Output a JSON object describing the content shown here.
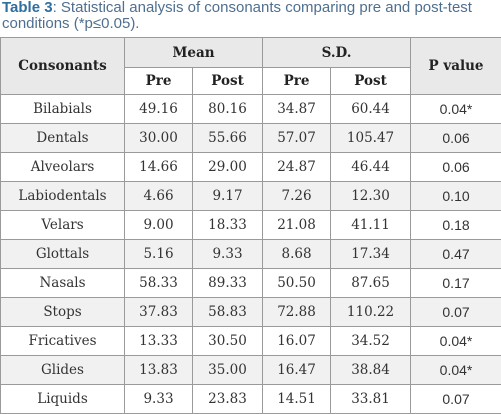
{
  "caption": {
    "label": "Table 3",
    "text": ": Statistical analysis of consonants comparing pre and post-test conditions (*p≤0.05)."
  },
  "table": {
    "headers": {
      "consonants": "Consonants",
      "mean": "Mean",
      "sd": "S.D.",
      "pvalue": "P value",
      "pre": "Pre",
      "post": "Post"
    },
    "rows": [
      {
        "name": "Bilabials",
        "mean_pre": "49.16",
        "mean_post": "80.16",
        "sd_pre": "34.87",
        "sd_post": "60.44",
        "p": "0.04*"
      },
      {
        "name": "Dentals",
        "mean_pre": "30.00",
        "mean_post": "55.66",
        "sd_pre": "57.07",
        "sd_post": "105.47",
        "p": "0.06"
      },
      {
        "name": "Alveolars",
        "mean_pre": "14.66",
        "mean_post": "29.00",
        "sd_pre": "24.87",
        "sd_post": "46.44",
        "p": "0.06"
      },
      {
        "name": "Labiodentals",
        "mean_pre": "4.66",
        "mean_post": "9.17",
        "sd_pre": "7.26",
        "sd_post": "12.30",
        "p": "0.10"
      },
      {
        "name": "Velars",
        "mean_pre": "9.00",
        "mean_post": "18.33",
        "sd_pre": "21.08",
        "sd_post": "41.11",
        "p": "0.18"
      },
      {
        "name": "Glottals",
        "mean_pre": "5.16",
        "mean_post": "9.33",
        "sd_pre": "8.68",
        "sd_post": "17.34",
        "p": "0.47"
      },
      {
        "name": "Nasals",
        "mean_pre": "58.33",
        "mean_post": "89.33",
        "sd_pre": "50.50",
        "sd_post": "87.65",
        "p": "0.17"
      },
      {
        "name": "Stops",
        "mean_pre": "37.83",
        "mean_post": "58.83",
        "sd_pre": "72.88",
        "sd_post": "110.22",
        "p": "0.07"
      },
      {
        "name": "Fricatives",
        "mean_pre": "13.33",
        "mean_post": "30.50",
        "sd_pre": "16.07",
        "sd_post": "34.52",
        "p": "0.04*"
      },
      {
        "name": "Glides",
        "mean_pre": "13.83",
        "mean_post": "35.00",
        "sd_pre": "16.47",
        "sd_post": "38.84",
        "p": "0.04*"
      },
      {
        "name": "Liquids",
        "mean_pre": "9.33",
        "mean_post": "23.83",
        "sd_pre": "14.51",
        "sd_post": "33.81",
        "p": "0.07"
      }
    ]
  }
}
